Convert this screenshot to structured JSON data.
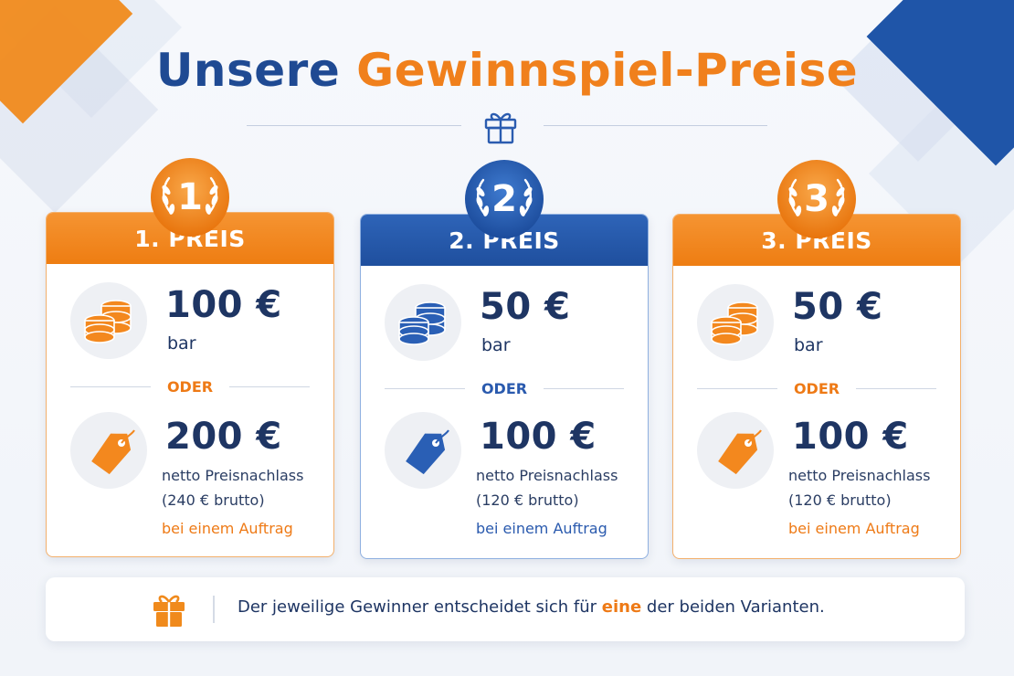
{
  "title": {
    "part1": "Unsere",
    "part2": "Gewinnspiel-Preise"
  },
  "colors": {
    "orange": "#f0801c",
    "blue": "#1f4a93",
    "navy": "#1e3563"
  },
  "prizes": [
    {
      "rank": "1",
      "header": "1. PREIS",
      "theme": "orange",
      "cash_amount": "100 €",
      "cash_label": "bar",
      "or_label": "ODER",
      "discount_amount": "200 €",
      "discount_label": "netto Preisnachlass",
      "discount_gross": "(240 € brutto)",
      "discount_condition": "bei einem Auftrag",
      "cash_icon": "coins-icon",
      "discount_icon": "price-tag-icon"
    },
    {
      "rank": "2",
      "header": "2. PREIS",
      "theme": "blue",
      "cash_amount": "50 €",
      "cash_label": "bar",
      "or_label": "ODER",
      "discount_amount": "100 €",
      "discount_label": "netto Preisnachlass",
      "discount_gross": "(120 € brutto)",
      "discount_condition": "bei einem Auftrag",
      "cash_icon": "coins-icon",
      "discount_icon": "price-tag-icon"
    },
    {
      "rank": "3",
      "header": "3. PREIS",
      "theme": "orange",
      "cash_amount": "50 €",
      "cash_label": "bar",
      "or_label": "ODER",
      "discount_amount": "100 €",
      "discount_label": "netto Preisnachlass",
      "discount_gross": "(120 € brutto)",
      "discount_condition": "bei einem Auftrag",
      "cash_icon": "coins-icon",
      "discount_icon": "price-tag-icon"
    }
  ],
  "footer": {
    "icon": "gift-icon",
    "text_before": "Der jeweilige Gewinner entscheidet sich für",
    "highlight": "eine",
    "text_after": "der beiden Varianten."
  }
}
